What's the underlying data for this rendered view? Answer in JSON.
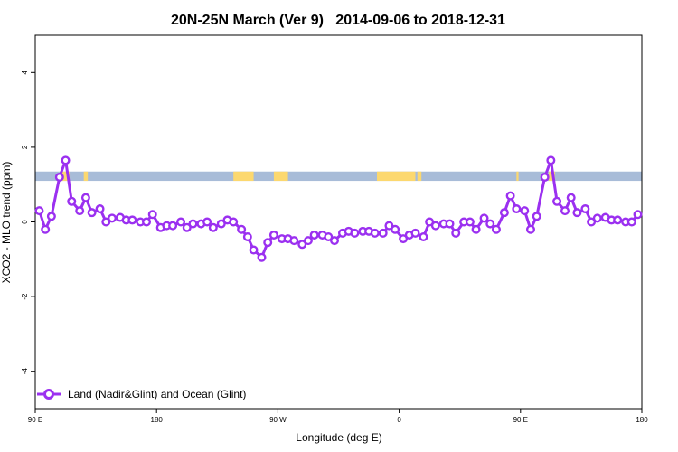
{
  "chart_data": {
    "type": "line",
    "title": "20N-25N March (Ver 9)   2014-09-06 to 2018-12-31",
    "xlabel": "Longitude (deg E)",
    "ylabel": "XCO2 - MLO trend (ppm)",
    "xlim": [
      90,
      390
    ],
    "ylim": [
      -5,
      5
    ],
    "xticks": [
      {
        "value": 90,
        "label": "90 E"
      },
      {
        "value": 150,
        "label": "180"
      },
      {
        "value": 210,
        "label": "90 W"
      },
      {
        "value": 270,
        "label": "0"
      },
      {
        "value": 330,
        "label": "90 E"
      },
      {
        "value": 390,
        "label": "180"
      }
    ],
    "yticks": [
      {
        "value": -4,
        "label": "-4"
      },
      {
        "value": -2,
        "label": "-2"
      },
      {
        "value": 0,
        "label": "0"
      },
      {
        "value": 2,
        "label": "2"
      },
      {
        "value": 4,
        "label": "4"
      }
    ],
    "series_color": "#9b30f0",
    "land_color": "#fcd86f",
    "ocean_color": "#a8bcd8",
    "legend_position": "bottom-left",
    "series": [
      {
        "name": "Land (Nadir&Glint) and Ocean (Glint)",
        "x": [
          92,
          95,
          98,
          102,
          105,
          108,
          112,
          115,
          118,
          122,
          125,
          128,
          132,
          135,
          138,
          142,
          145,
          148,
          152,
          155,
          158,
          162,
          165,
          168,
          172,
          175,
          178,
          182,
          185,
          188,
          192,
          195,
          198,
          202,
          205,
          208,
          212,
          215,
          218,
          222,
          225,
          228,
          232,
          235,
          238,
          242,
          245,
          248,
          252,
          255,
          258,
          262,
          265,
          268,
          272,
          275,
          278,
          282,
          285,
          288,
          292,
          295,
          298,
          302,
          305,
          308,
          312,
          315,
          318,
          322,
          325,
          328,
          332,
          335,
          338,
          342,
          345,
          348,
          352,
          355,
          358,
          362,
          365,
          368,
          372,
          375,
          378,
          382,
          385,
          388
        ],
        "y": [
          0.3,
          -0.2,
          0.15,
          1.2,
          1.65,
          0.55,
          0.3,
          0.65,
          0.25,
          0.35,
          0.0,
          0.1,
          0.12,
          0.05,
          0.05,
          0.0,
          0.0,
          0.2,
          -0.15,
          -0.1,
          -0.1,
          0.0,
          -0.15,
          -0.05,
          -0.05,
          0.0,
          -0.15,
          -0.05,
          0.05,
          0.0,
          -0.2,
          -0.4,
          -0.75,
          -0.95,
          -0.55,
          -0.35,
          -0.45,
          -0.45,
          -0.5,
          -0.6,
          -0.5,
          -0.35,
          -0.35,
          -0.4,
          -0.5,
          -0.3,
          -0.25,
          -0.3,
          -0.25,
          -0.25,
          -0.3,
          -0.3,
          -0.1,
          -0.2,
          -0.45,
          -0.35,
          -0.3,
          -0.4,
          0.0,
          -0.1,
          -0.05,
          -0.05,
          -0.3,
          0.0,
          0.0,
          -0.2,
          0.1,
          -0.05,
          -0.2,
          0.25,
          0.7,
          0.35,
          0.3,
          -0.2,
          0.15,
          1.2,
          1.65,
          0.55,
          0.3,
          0.65,
          0.25,
          0.35,
          0.0,
          0.1,
          0.12,
          0.05,
          0.05,
          0.0,
          0.0,
          0.2
        ]
      }
    ],
    "landmask_band": {
      "y_range": [
        1.1,
        1.35
      ],
      "land_x_ranges": [
        [
          103,
          107
        ],
        [
          114,
          116
        ],
        [
          188,
          198
        ],
        [
          208,
          215
        ],
        [
          259,
          278
        ],
        [
          279,
          281
        ],
        [
          328,
          329
        ],
        [
          344,
          347
        ]
      ]
    }
  }
}
